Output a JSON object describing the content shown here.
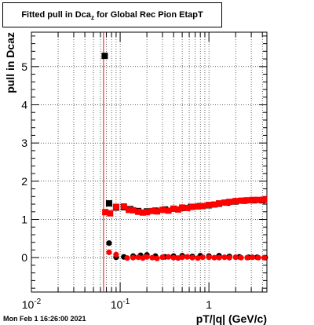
{
  "title": {
    "prefix": "Fitted pull in Dca",
    "sub": "z",
    "suffix": " for Global Rec Pion EtapT"
  },
  "timestamp": "Mon Feb  1 16:26:00 2021",
  "colors": {
    "black_series": "#000000",
    "red_series": "#ff0000",
    "marker_line": "#ff0000",
    "grid": "#000000"
  },
  "chart_data": {
    "type": "scatter",
    "title": "Fitted pull in Dcaz for Global Rec Pion EtapT",
    "xlabel": "pT/|q| (GeV/c)",
    "ylabel": "pull in Dcaz",
    "x_scale": "log",
    "xlim": [
      0.01,
      4.5
    ],
    "ylim": [
      -0.9,
      5.9
    ],
    "grid": true,
    "x_ticks": [
      {
        "value": 0.01,
        "label": "10",
        "exp": "-2"
      },
      {
        "value": 0.1,
        "label": "10",
        "exp": "-1"
      },
      {
        "value": 1,
        "label": "1",
        "exp": ""
      }
    ],
    "y_ticks": [
      0,
      1,
      2,
      3,
      4,
      5
    ],
    "vertical_line_x": 0.065,
    "series": [
      {
        "marker": "square",
        "color": "#000000",
        "points": [
          {
            "x": 0.067,
            "y": 5.28
          },
          {
            "x": 0.075,
            "y": 1.42
          },
          {
            "x": 0.09,
            "y": 1.31
          },
          {
            "x": 0.11,
            "y": 1.32
          },
          {
            "x": 0.13,
            "y": 1.27
          },
          {
            "x": 0.16,
            "y": 1.22
          },
          {
            "x": 0.2,
            "y": 1.21
          },
          {
            "x": 0.25,
            "y": 1.23
          },
          {
            "x": 0.32,
            "y": 1.26
          },
          {
            "x": 0.4,
            "y": 1.28
          },
          {
            "x": 0.5,
            "y": 1.3
          },
          {
            "x": 0.63,
            "y": 1.33
          },
          {
            "x": 0.8,
            "y": 1.35
          },
          {
            "x": 1.0,
            "y": 1.37
          },
          {
            "x": 1.3,
            "y": 1.41
          },
          {
            "x": 1.6,
            "y": 1.44
          },
          {
            "x": 2.0,
            "y": 1.47
          },
          {
            "x": 2.5,
            "y": 1.49
          },
          {
            "x": 3.2,
            "y": 1.5
          },
          {
            "x": 4.0,
            "y": 1.5
          }
        ]
      },
      {
        "marker": "square",
        "color": "#ff0000",
        "points": [
          {
            "x": 0.068,
            "y": 1.19
          },
          {
            "x": 0.077,
            "y": 1.16
          },
          {
            "x": 0.09,
            "y": 1.33
          },
          {
            "x": 0.11,
            "y": 1.34
          },
          {
            "x": 0.125,
            "y": 1.25
          },
          {
            "x": 0.14,
            "y": 1.24
          },
          {
            "x": 0.16,
            "y": 1.2
          },
          {
            "x": 0.18,
            "y": 1.18
          },
          {
            "x": 0.2,
            "y": 1.19
          },
          {
            "x": 0.23,
            "y": 1.22
          },
          {
            "x": 0.26,
            "y": 1.21
          },
          {
            "x": 0.3,
            "y": 1.25
          },
          {
            "x": 0.35,
            "y": 1.23
          },
          {
            "x": 0.4,
            "y": 1.28
          },
          {
            "x": 0.45,
            "y": 1.26
          },
          {
            "x": 0.5,
            "y": 1.31
          },
          {
            "x": 0.57,
            "y": 1.3
          },
          {
            "x": 0.65,
            "y": 1.33
          },
          {
            "x": 0.75,
            "y": 1.34
          },
          {
            "x": 0.85,
            "y": 1.35
          },
          {
            "x": 1.0,
            "y": 1.38
          },
          {
            "x": 1.15,
            "y": 1.39
          },
          {
            "x": 1.3,
            "y": 1.42
          },
          {
            "x": 1.5,
            "y": 1.44
          },
          {
            "x": 1.7,
            "y": 1.46
          },
          {
            "x": 2.0,
            "y": 1.48
          },
          {
            "x": 2.3,
            "y": 1.49
          },
          {
            "x": 2.7,
            "y": 1.5
          },
          {
            "x": 3.1,
            "y": 1.51
          },
          {
            "x": 3.6,
            "y": 1.51
          },
          {
            "x": 4.2,
            "y": 1.52
          }
        ]
      },
      {
        "marker": "circle",
        "color": "#000000",
        "points": [
          {
            "x": 0.075,
            "y": 0.38
          },
          {
            "x": 0.09,
            "y": 0.01
          },
          {
            "x": 0.11,
            "y": 0.02
          },
          {
            "x": 0.14,
            "y": 0.04
          },
          {
            "x": 0.17,
            "y": 0.06
          },
          {
            "x": 0.2,
            "y": 0.07
          },
          {
            "x": 0.25,
            "y": 0.04
          },
          {
            "x": 0.32,
            "y": 0.02
          },
          {
            "x": 0.4,
            "y": 0.04
          },
          {
            "x": 0.5,
            "y": 0.05
          },
          {
            "x": 0.65,
            "y": 0.03
          },
          {
            "x": 0.8,
            "y": 0.05
          },
          {
            "x": 1.0,
            "y": 0.04
          },
          {
            "x": 1.3,
            "y": 0.05
          },
          {
            "x": 1.7,
            "y": 0.03
          },
          {
            "x": 2.2,
            "y": 0.02
          },
          {
            "x": 2.8,
            "y": 0.01
          },
          {
            "x": 3.5,
            "y": 0.01
          },
          {
            "x": 4.3,
            "y": 0.0
          }
        ]
      },
      {
        "marker": "circle",
        "color": "#ff0000",
        "points": [
          {
            "x": 0.075,
            "y": 0.14
          },
          {
            "x": 0.09,
            "y": 0.08
          },
          {
            "x": 0.12,
            "y": -0.01
          },
          {
            "x": 0.14,
            "y": 0.0
          },
          {
            "x": 0.16,
            "y": 0.01
          },
          {
            "x": 0.18,
            "y": -0.01
          },
          {
            "x": 0.2,
            "y": 0.02
          },
          {
            "x": 0.23,
            "y": 0.0
          },
          {
            "x": 0.26,
            "y": -0.02
          },
          {
            "x": 0.3,
            "y": 0.01
          },
          {
            "x": 0.35,
            "y": 0.02
          },
          {
            "x": 0.4,
            "y": 0.0
          },
          {
            "x": 0.45,
            "y": -0.01
          },
          {
            "x": 0.5,
            "y": 0.01
          },
          {
            "x": 0.57,
            "y": 0.02
          },
          {
            "x": 0.65,
            "y": 0.0
          },
          {
            "x": 0.75,
            "y": -0.01
          },
          {
            "x": 0.85,
            "y": 0.01
          },
          {
            "x": 1.0,
            "y": 0.01
          },
          {
            "x": 1.15,
            "y": 0.0
          },
          {
            "x": 1.3,
            "y": 0.0
          },
          {
            "x": 1.5,
            "y": 0.01
          },
          {
            "x": 1.7,
            "y": 0.0
          },
          {
            "x": 2.0,
            "y": 0.01
          },
          {
            "x": 2.3,
            "y": 0.0
          },
          {
            "x": 2.7,
            "y": 0.0
          },
          {
            "x": 3.1,
            "y": 0.01
          },
          {
            "x": 3.6,
            "y": 0.0
          },
          {
            "x": 4.2,
            "y": 0.0
          }
        ]
      }
    ]
  }
}
